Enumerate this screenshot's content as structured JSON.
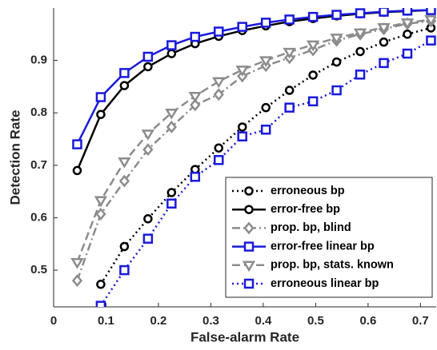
{
  "chart_data": {
    "type": "line",
    "x_label": "False-alarm Rate",
    "y_label": "Detection Rate",
    "x": [
      0.045,
      0.09,
      0.135,
      0.18,
      0.225,
      0.27,
      0.315,
      0.36,
      0.405,
      0.45,
      0.495,
      0.54,
      0.585,
      0.63,
      0.675,
      0.72
    ],
    "xlim": [
      0,
      0.73
    ],
    "xticks": [
      0,
      0.1,
      0.2,
      0.3,
      0.4,
      0.5,
      0.6,
      0.7
    ],
    "ylim": [
      0.43,
      1
    ],
    "yticks": [
      0.5,
      0.6,
      0.7,
      0.8,
      0.9
    ],
    "series": [
      {
        "name": "erroneous bp",
        "color": "#000000",
        "dash": "dotted",
        "marker": "circle",
        "values": [
          null,
          0.473,
          0.545,
          0.598,
          0.648,
          0.692,
          0.733,
          0.773,
          0.81,
          0.843,
          0.872,
          0.897,
          0.917,
          0.935,
          0.95,
          0.962
        ]
      },
      {
        "name": "error-free bp",
        "color": "#000000",
        "dash": "solid",
        "marker": "circle",
        "values": [
          0.69,
          0.797,
          0.852,
          0.888,
          0.913,
          0.932,
          0.946,
          0.957,
          0.966,
          0.974,
          0.98,
          0.985,
          0.989,
          0.992,
          0.994,
          0.996
        ]
      },
      {
        "name": "prop. bp, blind",
        "color": "#8c8c8c",
        "dash": "dashdot",
        "marker": "diamond",
        "values": [
          0.48,
          0.607,
          0.67,
          0.73,
          0.773,
          0.815,
          0.835,
          0.87,
          0.89,
          0.905,
          0.92,
          0.938,
          0.95,
          0.96,
          0.97,
          0.975
        ]
      },
      {
        "name": "error-free linear bp",
        "color": "#1a1adb",
        "dash": "solid",
        "marker": "square",
        "values": [
          0.74,
          0.83,
          0.876,
          0.907,
          0.929,
          0.945,
          0.955,
          0.964,
          0.972,
          0.978,
          0.983,
          0.987,
          0.99,
          0.993,
          0.995,
          0.996
        ]
      },
      {
        "name": "prop. bp, stats. known",
        "color": "#8c8c8c",
        "dash": "dashed",
        "marker": "triangle",
        "values": [
          0.515,
          0.633,
          0.707,
          0.76,
          0.8,
          0.832,
          0.86,
          0.882,
          0.9,
          0.916,
          0.93,
          0.943,
          0.953,
          0.963,
          0.972,
          0.978
        ]
      },
      {
        "name": "erroneous linear bp",
        "color": "#1a1adb",
        "dash": "dotted",
        "marker": "square",
        "values": [
          null,
          0.432,
          0.5,
          0.56,
          0.627,
          0.678,
          0.71,
          0.755,
          0.768,
          0.81,
          0.822,
          0.843,
          0.873,
          0.895,
          0.913,
          0.938
        ]
      }
    ]
  }
}
